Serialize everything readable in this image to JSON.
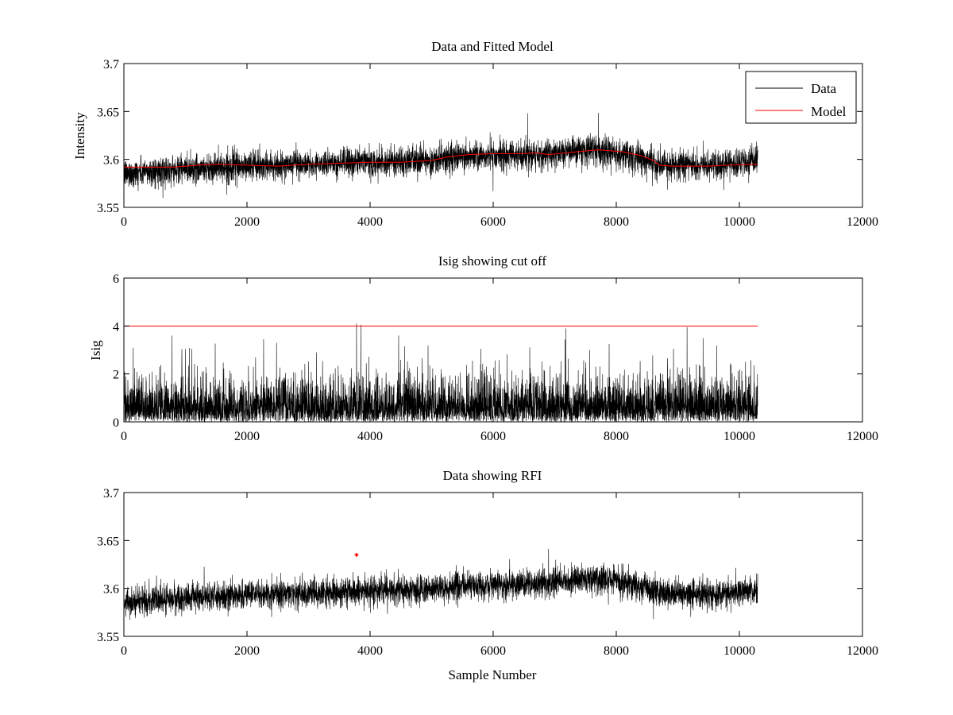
{
  "chart_data": [
    {
      "type": "line",
      "title": "Data and Fitted Model",
      "xlabel": "",
      "ylabel": "Intensity",
      "xlim": [
        0,
        12000
      ],
      "ylim": [
        3.55,
        3.7
      ],
      "xticks": [
        "0",
        "2000",
        "4000",
        "6000",
        "8000",
        "10000",
        "12000"
      ],
      "xtick_values": [
        0,
        2000,
        4000,
        6000,
        8000,
        10000,
        12000
      ],
      "yticks": [
        "3.55",
        "3.6",
        "3.65",
        "3.7"
      ],
      "ytick_values": [
        3.55,
        3.6,
        3.65,
        3.7
      ],
      "grid": false,
      "legend": {
        "placement": "top-right",
        "entries": [
          "Data",
          "Model"
        ]
      },
      "series": [
        {
          "name": "Data",
          "color": "#000000",
          "kind": "noisy",
          "n_samples": 10300,
          "noise_sd": 0.0075,
          "trend_x": [
            0,
            1000,
            2000,
            3000,
            4000,
            5000,
            5500,
            6000,
            6700,
            7200,
            7700,
            8300,
            8700,
            9500,
            10300
          ],
          "trend_y": [
            3.585,
            3.59,
            3.593,
            3.595,
            3.597,
            3.599,
            3.603,
            3.604,
            3.604,
            3.608,
            3.61,
            3.603,
            3.595,
            3.594,
            3.598
          ]
        },
        {
          "name": "Model",
          "color": "#ff0000",
          "x": [
            0,
            500,
            800,
            1200,
            1500,
            2000,
            2500,
            3000,
            3500,
            4000,
            4500,
            5000,
            5300,
            5600,
            6000,
            6500,
            6700,
            6900,
            7200,
            7700,
            8100,
            8400,
            8600,
            8700,
            8900,
            9500,
            9800,
            10300
          ],
          "y": [
            3.592,
            3.592,
            3.592,
            3.594,
            3.595,
            3.594,
            3.593,
            3.595,
            3.596,
            3.597,
            3.597,
            3.599,
            3.603,
            3.605,
            3.606,
            3.606,
            3.607,
            3.605,
            3.607,
            3.61,
            3.608,
            3.604,
            3.599,
            3.594,
            3.593,
            3.593,
            3.594,
            3.595
          ]
        }
      ]
    },
    {
      "type": "line",
      "title": "Isig showing cut off",
      "xlabel": "",
      "ylabel": "Isig",
      "xlim": [
        0,
        12000
      ],
      "ylim": [
        0,
        6
      ],
      "xticks": [
        "0",
        "2000",
        "4000",
        "6000",
        "8000",
        "10000",
        "12000"
      ],
      "xtick_values": [
        0,
        2000,
        4000,
        6000,
        8000,
        10000,
        12000
      ],
      "yticks": [
        "0",
        "2",
        "4",
        "6"
      ],
      "ytick_values": [
        0,
        2,
        4,
        6
      ],
      "grid": false,
      "series": [
        {
          "color": "#000000",
          "kind": "abs-noise",
          "n_samples": 10300,
          "typical_max": 2.5,
          "peaks": [
            {
              "x": 3780,
              "y": 4.1
            },
            {
              "x": 3850,
              "y": 4.05
            },
            {
              "x": 7180,
              "y": 3.9
            },
            {
              "x": 9150,
              "y": 3.95
            },
            {
              "x": 780,
              "y": 3.6
            },
            {
              "x": 2480,
              "y": 3.3
            }
          ]
        },
        {
          "color": "#ff0000",
          "x": [
            0,
            10300
          ],
          "y": [
            4,
            4
          ]
        }
      ]
    },
    {
      "type": "line",
      "title": "Data showing RFI",
      "xlabel": "Sample Number",
      "ylabel": "",
      "xlim": [
        0,
        12000
      ],
      "ylim": [
        3.55,
        3.7
      ],
      "xticks": [
        "0",
        "2000",
        "4000",
        "6000",
        "8000",
        "10000",
        "12000"
      ],
      "xtick_values": [
        0,
        2000,
        4000,
        6000,
        8000,
        10000,
        12000
      ],
      "yticks": [
        "3.55",
        "3.6",
        "3.65",
        "3.7"
      ],
      "ytick_values": [
        3.55,
        3.6,
        3.65,
        3.7
      ],
      "grid": false,
      "series": [
        {
          "color": "#000000",
          "kind": "noisy",
          "n_samples": 10300,
          "noise_sd": 0.0075,
          "trend_x": [
            0,
            1000,
            2000,
            3000,
            4000,
            5000,
            5500,
            6000,
            6700,
            7200,
            7700,
            8300,
            8700,
            9500,
            10300
          ],
          "trend_y": [
            3.585,
            3.59,
            3.593,
            3.595,
            3.597,
            3.599,
            3.603,
            3.604,
            3.604,
            3.608,
            3.61,
            3.603,
            3.595,
            3.594,
            3.598
          ]
        },
        {
          "color": "#ff0000",
          "kind": "markers",
          "x": [
            3780
          ],
          "y": [
            3.635
          ]
        }
      ]
    }
  ]
}
